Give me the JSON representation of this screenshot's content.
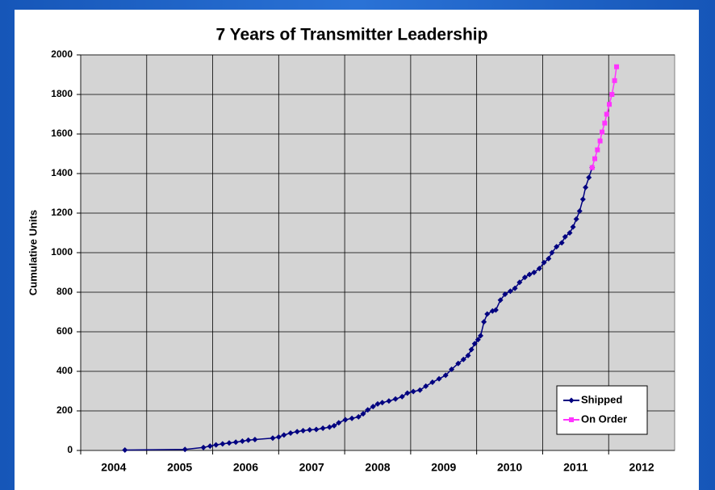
{
  "chart_data": {
    "type": "line",
    "title": "7 Years of Transmitter Leadership",
    "y_label": "Cumulative Units",
    "xlim": [
      2004,
      2013
    ],
    "xticks": [
      2004,
      2005,
      2006,
      2007,
      2008,
      2009,
      2010,
      2011,
      2012
    ],
    "ylim": [
      0,
      2000
    ],
    "yticks": [
      0,
      200,
      400,
      600,
      800,
      1000,
      1200,
      1400,
      1600,
      1800,
      2000
    ],
    "grid": true,
    "legend": "lower right",
    "series": [
      {
        "name": "Shipped",
        "color": "#000080",
        "marker": "diamond",
        "x": [
          2004.67,
          2005.58,
          2005.86,
          2005.96,
          2006.05,
          2006.15,
          2006.25,
          2006.35,
          2006.45,
          2006.54,
          2006.64,
          2006.91,
          2007.0,
          2007.08,
          2007.18,
          2007.28,
          2007.37,
          2007.47,
          2007.57,
          2007.67,
          2007.77,
          2007.84,
          2007.91,
          2008.01,
          2008.11,
          2008.21,
          2008.28,
          2008.35,
          2008.43,
          2008.5,
          2008.57,
          2008.67,
          2008.77,
          2008.87,
          2008.95,
          2009.04,
          2009.14,
          2009.23,
          2009.33,
          2009.43,
          2009.53,
          2009.62,
          2009.72,
          2009.8,
          2009.87,
          2009.92,
          2009.97,
          2010.02,
          2010.06,
          2010.11,
          2010.16,
          2010.24,
          2010.29,
          2010.36,
          2010.43,
          2010.51,
          2010.58,
          2010.65,
          2010.73,
          2010.8,
          2010.87,
          2010.95,
          2011.02,
          2011.09,
          2011.14,
          2011.21,
          2011.29,
          2011.34,
          2011.41,
          2011.46,
          2011.51,
          2011.56,
          2011.61,
          2011.65,
          2011.7,
          2011.75
        ],
        "values": [
          2,
          5,
          15,
          22,
          28,
          33,
          38,
          42,
          47,
          52,
          55,
          62,
          68,
          78,
          88,
          95,
          100,
          104,
          106,
          112,
          118,
          125,
          140,
          155,
          162,
          170,
          185,
          205,
          222,
          235,
          242,
          250,
          260,
          272,
          290,
          298,
          305,
          325,
          345,
          362,
          380,
          410,
          440,
          460,
          480,
          510,
          540,
          560,
          580,
          650,
          690,
          705,
          710,
          760,
          790,
          805,
          820,
          850,
          875,
          890,
          900,
          920,
          950,
          970,
          1000,
          1030,
          1050,
          1080,
          1100,
          1130,
          1170,
          1210,
          1270,
          1330,
          1380,
          1430
        ]
      },
      {
        "name": "On Order",
        "color": "#ff33ff",
        "marker": "square",
        "x": [
          2011.75,
          2011.79,
          2011.83,
          2011.87,
          2011.9,
          2011.94,
          2011.97,
          2012.01,
          2012.05,
          2012.09,
          2012.12
        ],
        "values": [
          1430,
          1475,
          1520,
          1565,
          1610,
          1655,
          1700,
          1750,
          1800,
          1870,
          1940
        ]
      }
    ]
  }
}
